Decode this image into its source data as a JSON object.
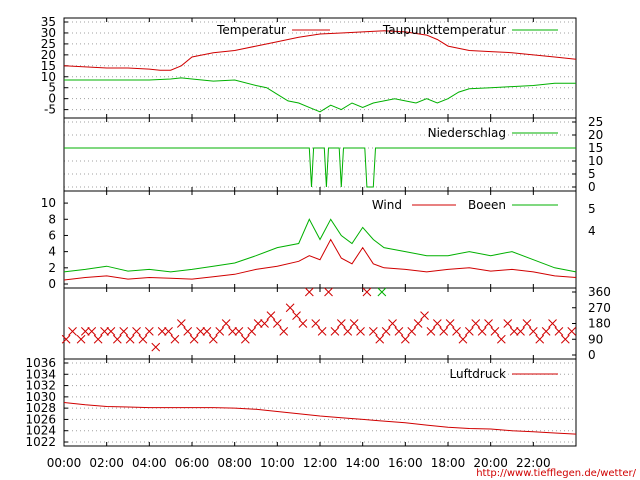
{
  "footer_url": "http://www.tiefflegen.de/wetter/",
  "colors": {
    "red": "#d00000",
    "green": "#00b000",
    "grid": "#a0a0a0"
  },
  "chart_data": [
    {
      "id": "temperature",
      "type": "line",
      "ylim": [
        -7,
        35
      ],
      "y_ticks": [
        -5,
        0,
        5,
        10,
        15,
        20,
        25,
        30,
        35
      ],
      "xlim": [
        0,
        24
      ],
      "series": [
        {
          "name": "Temperatur",
          "color": "#d00000",
          "x": [
            0,
            1,
            2,
            3,
            4,
            4.5,
            5,
            5.5,
            6,
            7,
            8,
            9,
            10,
            10.5,
            11,
            12,
            13,
            14,
            15,
            16,
            17,
            17.5,
            18,
            19,
            20,
            21,
            22,
            23,
            24
          ],
          "y": [
            15,
            14.5,
            14,
            14,
            13.5,
            13,
            13,
            15,
            19,
            21,
            22,
            24,
            26,
            27,
            28,
            29.5,
            30,
            30.5,
            31,
            30.5,
            29,
            27,
            24,
            22,
            21.5,
            21,
            20,
            19,
            18
          ]
        },
        {
          "name": "Taupunkttemperatur",
          "color": "#00b000",
          "x": [
            0,
            1,
            2,
            3,
            4,
            5,
            5.5,
            6,
            7,
            8,
            9,
            9.5,
            10,
            10.5,
            11,
            11.5,
            12,
            12.5,
            13,
            13.5,
            14,
            14.5,
            15,
            15.5,
            16,
            16.5,
            17,
            17.5,
            18,
            18.5,
            19,
            20,
            21,
            22,
            23,
            24
          ],
          "y": [
            8.5,
            8.5,
            8.5,
            8.5,
            8.5,
            9,
            9.5,
            9,
            8,
            8.5,
            6,
            5,
            2,
            -1,
            -2,
            -4,
            -6,
            -3,
            -5,
            -2,
            -4,
            -2,
            -1,
            0,
            -1,
            -2,
            0,
            -2,
            0,
            3,
            4.5,
            5,
            5.5,
            6,
            7,
            7
          ]
        }
      ]
    },
    {
      "id": "precipitation",
      "type": "line",
      "ylim": [
        0,
        25
      ],
      "y_ticks": [
        0,
        5,
        10,
        15,
        20,
        25
      ],
      "xlim": [
        0,
        24
      ],
      "series": [
        {
          "name": "Niederschlag",
          "color": "#00b000",
          "x": [
            0,
            11.5,
            11.6,
            11.7,
            12.2,
            12.3,
            12.4,
            12.9,
            13.0,
            13.1,
            14.1,
            14.2,
            14.3,
            14.5,
            14.6,
            24
          ],
          "y": [
            15,
            15,
            0,
            15,
            15,
            0,
            15,
            15,
            0,
            15,
            15,
            0,
            0,
            0,
            15,
            15
          ]
        }
      ]
    },
    {
      "id": "wind",
      "type": "line",
      "ylim": [
        0,
        11
      ],
      "y_ticks": [
        0,
        2,
        4,
        6,
        8,
        10
      ],
      "y2_ticks": [
        4,
        5
      ],
      "xlim": [
        0,
        24
      ],
      "series": [
        {
          "name": "Wind",
          "color": "#d00000",
          "x": [
            0,
            1,
            2,
            3,
            4,
            5,
            6,
            7,
            8,
            9,
            10,
            11,
            11.5,
            12,
            12.5,
            13,
            13.5,
            14,
            14.5,
            15,
            16,
            17,
            18,
            19,
            20,
            21,
            22,
            23,
            24
          ],
          "y": [
            0.5,
            0.8,
            1,
            0.6,
            0.8,
            0.7,
            0.6,
            0.9,
            1.2,
            1.8,
            2.2,
            2.8,
            3.5,
            3,
            5.5,
            3.2,
            2.5,
            4.5,
            2.5,
            2,
            1.8,
            1.5,
            1.8,
            2,
            1.6,
            1.8,
            1.5,
            1,
            0.8
          ]
        },
        {
          "name": "Boeen",
          "color": "#00b000",
          "x": [
            0,
            1,
            2,
            3,
            4,
            5,
            6,
            7,
            8,
            9,
            10,
            11,
            11.5,
            12,
            12.5,
            13,
            13.5,
            14,
            14.5,
            15,
            16,
            17,
            18,
            19,
            20,
            21,
            22,
            23,
            24
          ],
          "y": [
            1.5,
            1.8,
            2.2,
            1.6,
            1.8,
            1.5,
            1.8,
            2.2,
            2.6,
            3.5,
            4.5,
            5,
            8,
            5.5,
            8,
            6,
            5,
            7,
            5.5,
            4.5,
            4,
            3.5,
            3.5,
            4,
            3.5,
            4,
            3,
            2,
            1.5
          ]
        }
      ]
    },
    {
      "id": "wind_direction",
      "type": "scatter",
      "ylim": [
        0,
        360
      ],
      "y_ticks": [
        0,
        90,
        180,
        270,
        360
      ],
      "xlim": [
        0,
        24
      ],
      "marker": "x",
      "series": [
        {
          "name": "",
          "color": "#d00000",
          "x": [
            0.1,
            0.4,
            0.8,
            1.0,
            1.3,
            1.6,
            1.9,
            2.2,
            2.5,
            2.8,
            3.1,
            3.4,
            3.7,
            4.0,
            4.3,
            4.6,
            4.9,
            5.2,
            5.5,
            5.8,
            6.1,
            6.4,
            6.7,
            7.0,
            7.3,
            7.6,
            7.9,
            8.2,
            8.5,
            8.8,
            9.1,
            9.4,
            9.7,
            10.0,
            10.3,
            10.6,
            10.9,
            11.2,
            11.5,
            11.8,
            12.1,
            12.4,
            12.7,
            13.0,
            13.3,
            13.6,
            13.9,
            14.2,
            14.5,
            14.8,
            15.1,
            15.4,
            15.7,
            16.0,
            16.3,
            16.6,
            16.9,
            17.2,
            17.5,
            17.8,
            18.1,
            18.4,
            18.7,
            19.0,
            19.3,
            19.6,
            19.9,
            20.2,
            20.5,
            20.8,
            21.1,
            21.4,
            21.7,
            22.0,
            22.3,
            22.6,
            22.9,
            23.2,
            23.5,
            23.8
          ],
          "y": [
            90,
            135,
            90,
            135,
            135,
            90,
            135,
            135,
            90,
            135,
            90,
            135,
            90,
            135,
            45,
            135,
            135,
            90,
            180,
            135,
            90,
            135,
            135,
            90,
            135,
            180,
            135,
            135,
            90,
            135,
            180,
            180,
            225,
            180,
            135,
            270,
            225,
            180,
            360,
            180,
            135,
            360,
            135,
            180,
            135,
            180,
            135,
            360,
            135,
            90,
            135,
            180,
            135,
            90,
            135,
            180,
            225,
            135,
            180,
            135,
            180,
            135,
            90,
            135,
            180,
            135,
            180,
            135,
            90,
            180,
            135,
            135,
            180,
            135,
            90,
            135,
            180,
            135,
            90,
            135
          ]
        },
        {
          "name": "",
          "color": "#00b000",
          "x": [
            14.9
          ],
          "y": [
            360
          ]
        }
      ]
    },
    {
      "id": "pressure",
      "type": "line",
      "ylim": [
        1022,
        1036
      ],
      "y_ticks": [
        1022,
        1024,
        1026,
        1028,
        1030,
        1032,
        1034,
        1036
      ],
      "xlim": [
        0,
        24
      ],
      "x_ticks": [
        "00:00",
        "02:00",
        "04:00",
        "06:00",
        "08:00",
        "10:00",
        "12:00",
        "14:00",
        "16:00",
        "18:00",
        "20:00",
        "22:00"
      ],
      "series": [
        {
          "name": "Luftdruck",
          "color": "#d00000",
          "x": [
            0,
            1,
            2,
            3,
            4,
            5,
            6,
            7,
            8,
            9,
            10,
            11,
            12,
            13,
            14,
            15,
            16,
            17,
            18,
            19,
            20,
            21,
            22,
            23,
            24
          ],
          "y": [
            1029,
            1028.6,
            1028.3,
            1028.2,
            1028.1,
            1028.1,
            1028.1,
            1028.1,
            1028,
            1027.8,
            1027.4,
            1027,
            1026.6,
            1026.3,
            1026,
            1025.7,
            1025.4,
            1025,
            1024.6,
            1024.4,
            1024.3,
            1024,
            1023.8,
            1023.6,
            1023.4
          ]
        }
      ]
    }
  ]
}
